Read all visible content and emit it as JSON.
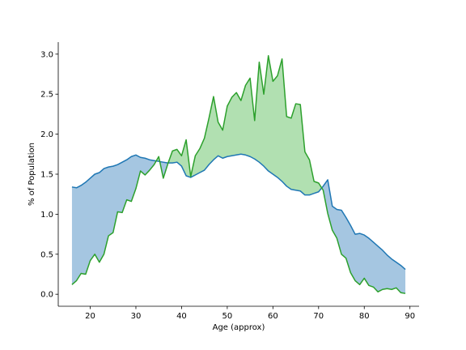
{
  "chart_data": {
    "type": "area",
    "xlabel": "Age (approx)",
    "ylabel": "% of Population",
    "xlim": [
      13,
      92
    ],
    "ylim": [
      -0.15,
      3.15
    ],
    "xticks": [
      20,
      30,
      40,
      50,
      60,
      70,
      80,
      90
    ],
    "yticks": [
      0.0,
      0.5,
      1.0,
      1.5,
      2.0,
      2.5,
      3.0
    ],
    "grid": false,
    "colors": {
      "line_a": "#1f77b4",
      "line_b": "#2ca02c",
      "fill_a_above": "#a5c6e1",
      "fill_b_above": "#b1e0b1"
    },
    "x": [
      16,
      17,
      18,
      19,
      20,
      21,
      22,
      23,
      24,
      25,
      26,
      27,
      28,
      29,
      30,
      31,
      32,
      33,
      34,
      35,
      36,
      37,
      38,
      39,
      40,
      41,
      42,
      43,
      44,
      45,
      46,
      47,
      48,
      49,
      50,
      51,
      52,
      53,
      54,
      55,
      56,
      57,
      58,
      59,
      60,
      61,
      62,
      63,
      64,
      65,
      66,
      67,
      68,
      69,
      70,
      71,
      72,
      73,
      74,
      75,
      76,
      77,
      78,
      79,
      80,
      81,
      82,
      83,
      84,
      85,
      86,
      87,
      88,
      89
    ],
    "series": [
      {
        "values": [
          1.34,
          1.33,
          1.36,
          1.4,
          1.45,
          1.5,
          1.52,
          1.57,
          1.59,
          1.6,
          1.62,
          1.65,
          1.68,
          1.72,
          1.74,
          1.71,
          1.7,
          1.68,
          1.67,
          1.66,
          1.65,
          1.64,
          1.64,
          1.65,
          1.6,
          1.48,
          1.46,
          1.49,
          1.52,
          1.55,
          1.62,
          1.68,
          1.73,
          1.7,
          1.72,
          1.73,
          1.74,
          1.75,
          1.74,
          1.72,
          1.69,
          1.65,
          1.6,
          1.54,
          1.5,
          1.46,
          1.41,
          1.35,
          1.31,
          1.3,
          1.29,
          1.24,
          1.24,
          1.26,
          1.28,
          1.35,
          1.43,
          1.1,
          1.06,
          1.05,
          0.96,
          0.86,
          0.75,
          0.76,
          0.74,
          0.7,
          0.65,
          0.6,
          0.55,
          0.49,
          0.44,
          0.4,
          0.36,
          0.31
        ]
      },
      {
        "values": [
          0.12,
          0.17,
          0.26,
          0.25,
          0.42,
          0.5,
          0.4,
          0.5,
          0.73,
          0.77,
          1.03,
          1.02,
          1.18,
          1.16,
          1.32,
          1.54,
          1.49,
          1.55,
          1.62,
          1.72,
          1.45,
          1.63,
          1.79,
          1.81,
          1.73,
          1.93,
          1.47,
          1.73,
          1.82,
          1.95,
          2.2,
          2.47,
          2.15,
          2.05,
          2.35,
          2.46,
          2.52,
          2.42,
          2.61,
          2.7,
          2.17,
          2.9,
          2.5,
          2.98,
          2.66,
          2.73,
          2.94,
          2.22,
          2.2,
          2.38,
          2.37,
          1.78,
          1.68,
          1.41,
          1.39,
          1.3,
          1.01,
          0.8,
          0.7,
          0.5,
          0.45,
          0.27,
          0.17,
          0.12,
          0.2,
          0.11,
          0.09,
          0.03,
          0.06,
          0.07,
          0.06,
          0.08,
          0.02,
          0.01
        ]
      }
    ]
  }
}
